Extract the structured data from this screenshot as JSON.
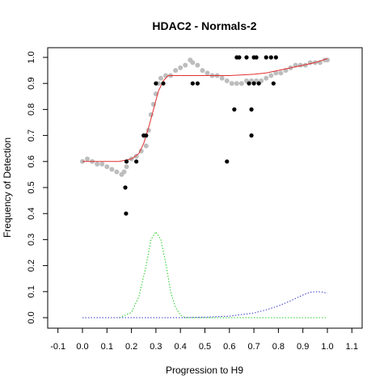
{
  "chart_data": {
    "type": "scatter",
    "title": "HDAC2 - Normals-2",
    "xlabel": "Progression to H9",
    "ylabel": "Frequency of Detection",
    "xlim": [
      -0.1,
      1.1
    ],
    "ylim": [
      0.0,
      1.0
    ],
    "x_ticks": [
      "-0.1",
      "0.0",
      "0.1",
      "0.2",
      "0.3",
      "0.4",
      "0.5",
      "0.6",
      "0.7",
      "0.8",
      "0.9",
      "1.0",
      "1.1"
    ],
    "y_ticks": [
      "0.0",
      "0.1",
      "0.2",
      "0.3",
      "0.4",
      "0.5",
      "0.6",
      "0.7",
      "0.8",
      "0.9",
      "1.0"
    ],
    "grid": false,
    "colors": {
      "observed": "#000000",
      "smoothed": "#bdbdbd",
      "fit": "#e03030",
      "density_green": "#22cc22",
      "density_blue": "#3333cc"
    },
    "series": [
      {
        "role": "observed",
        "style": "black-dots",
        "points": [
          [
            0.18,
            0.6
          ],
          [
            0.175,
            0.5
          ],
          [
            0.178,
            0.4
          ],
          [
            0.22,
            0.6
          ],
          [
            0.25,
            0.7
          ],
          [
            0.26,
            0.7
          ],
          [
            0.3,
            0.9
          ],
          [
            0.33,
            0.9
          ],
          [
            0.45,
            0.9
          ],
          [
            0.47,
            0.9
          ],
          [
            0.59,
            0.6
          ],
          [
            0.62,
            0.8
          ],
          [
            0.63,
            1.0
          ],
          [
            0.64,
            1.0
          ],
          [
            0.67,
            1.0
          ],
          [
            0.68,
            0.9
          ],
          [
            0.69,
            0.7
          ],
          [
            0.69,
            0.8
          ],
          [
            0.7,
            1.0
          ],
          [
            0.7,
            0.9
          ],
          [
            0.71,
            1.0
          ],
          [
            0.72,
            0.9
          ],
          [
            0.75,
            1.0
          ],
          [
            0.77,
            1.0
          ],
          [
            0.78,
            0.9
          ],
          [
            0.79,
            1.0
          ]
        ]
      },
      {
        "role": "smoothed",
        "style": "gray-dots",
        "points": [
          [
            0.0,
            0.6
          ],
          [
            0.02,
            0.61
          ],
          [
            0.04,
            0.6
          ],
          [
            0.06,
            0.59
          ],
          [
            0.08,
            0.59
          ],
          [
            0.1,
            0.58
          ],
          [
            0.12,
            0.57
          ],
          [
            0.14,
            0.56
          ],
          [
            0.16,
            0.55
          ],
          [
            0.17,
            0.56
          ],
          [
            0.18,
            0.58
          ],
          [
            0.2,
            0.61
          ],
          [
            0.22,
            0.62
          ],
          [
            0.24,
            0.64
          ],
          [
            0.26,
            0.66
          ],
          [
            0.27,
            0.72
          ],
          [
            0.28,
            0.78
          ],
          [
            0.29,
            0.82
          ],
          [
            0.3,
            0.86
          ],
          [
            0.31,
            0.9
          ],
          [
            0.32,
            0.92
          ],
          [
            0.34,
            0.93
          ],
          [
            0.36,
            0.93
          ],
          [
            0.38,
            0.95
          ],
          [
            0.4,
            0.96
          ],
          [
            0.42,
            0.97
          ],
          [
            0.44,
            0.99
          ],
          [
            0.45,
            0.98
          ],
          [
            0.47,
            0.97
          ],
          [
            0.49,
            0.95
          ],
          [
            0.51,
            0.94
          ],
          [
            0.53,
            0.93
          ],
          [
            0.55,
            0.93
          ],
          [
            0.57,
            0.92
          ],
          [
            0.59,
            0.91
          ],
          [
            0.61,
            0.9
          ],
          [
            0.63,
            0.9
          ],
          [
            0.65,
            0.9
          ],
          [
            0.67,
            0.91
          ],
          [
            0.69,
            0.91
          ],
          [
            0.71,
            0.91
          ],
          [
            0.73,
            0.91
          ],
          [
            0.75,
            0.92
          ],
          [
            0.77,
            0.93
          ],
          [
            0.79,
            0.94
          ],
          [
            0.81,
            0.94
          ],
          [
            0.83,
            0.95
          ],
          [
            0.85,
            0.96
          ],
          [
            0.87,
            0.97
          ],
          [
            0.89,
            0.97
          ],
          [
            0.91,
            0.97
          ],
          [
            0.93,
            0.98
          ],
          [
            0.95,
            0.98
          ],
          [
            0.97,
            0.98
          ],
          [
            0.99,
            0.99
          ],
          [
            1.0,
            0.99
          ]
        ]
      },
      {
        "role": "fit",
        "style": "red-line",
        "points": [
          [
            0.0,
            0.6
          ],
          [
            0.05,
            0.6
          ],
          [
            0.1,
            0.6
          ],
          [
            0.15,
            0.6
          ],
          [
            0.2,
            0.61
          ],
          [
            0.23,
            0.63
          ],
          [
            0.25,
            0.67
          ],
          [
            0.27,
            0.73
          ],
          [
            0.29,
            0.8
          ],
          [
            0.31,
            0.87
          ],
          [
            0.33,
            0.91
          ],
          [
            0.35,
            0.93
          ],
          [
            0.4,
            0.93
          ],
          [
            0.5,
            0.93
          ],
          [
            0.6,
            0.93
          ],
          [
            0.7,
            0.935
          ],
          [
            0.75,
            0.94
          ],
          [
            0.8,
            0.95
          ],
          [
            0.85,
            0.96
          ],
          [
            0.9,
            0.97
          ],
          [
            0.95,
            0.98
          ],
          [
            1.0,
            0.995
          ]
        ]
      },
      {
        "role": "density_green",
        "style": "green-dotted",
        "points": [
          [
            0.0,
            0.0
          ],
          [
            0.15,
            0.0
          ],
          [
            0.2,
            0.02
          ],
          [
            0.23,
            0.08
          ],
          [
            0.26,
            0.2
          ],
          [
            0.28,
            0.3
          ],
          [
            0.3,
            0.33
          ],
          [
            0.32,
            0.3
          ],
          [
            0.34,
            0.21
          ],
          [
            0.36,
            0.1
          ],
          [
            0.38,
            0.04
          ],
          [
            0.4,
            0.01
          ],
          [
            0.42,
            0.0
          ],
          [
            0.5,
            0.0
          ],
          [
            0.7,
            0.0
          ],
          [
            0.9,
            0.0
          ],
          [
            1.0,
            0.0
          ]
        ]
      },
      {
        "role": "density_blue",
        "style": "blue-dotted",
        "points": [
          [
            0.0,
            0.0
          ],
          [
            0.2,
            0.0
          ],
          [
            0.4,
            0.0
          ],
          [
            0.5,
            0.002
          ],
          [
            0.6,
            0.006
          ],
          [
            0.7,
            0.018
          ],
          [
            0.75,
            0.03
          ],
          [
            0.8,
            0.045
          ],
          [
            0.85,
            0.065
          ],
          [
            0.9,
            0.087
          ],
          [
            0.93,
            0.098
          ],
          [
            0.96,
            0.1
          ],
          [
            0.98,
            0.098
          ],
          [
            1.0,
            0.094
          ]
        ]
      }
    ]
  }
}
